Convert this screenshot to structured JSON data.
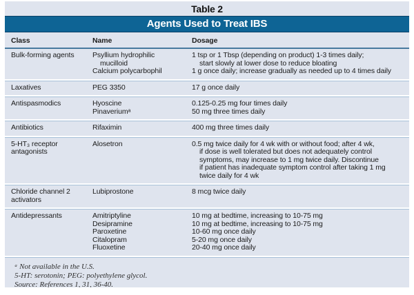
{
  "table": {
    "caption": "Table 2",
    "title": "Agents Used to Treat IBS",
    "columns": [
      "Class",
      "Name",
      "Dosage"
    ],
    "rows": [
      {
        "class_lines": [
          {
            "t": "Bulk-forming agents"
          }
        ],
        "name_lines": [
          {
            "t": "Psyllium hydrophilic"
          },
          {
            "t": "mucilloid",
            "indent": true
          },
          {
            "t": "Calcium polycarbophil"
          }
        ],
        "dosage_lines": [
          {
            "t": "1 tsp or 1 Tbsp (depending on product) 1-3 times daily;"
          },
          {
            "t": "start slowly at lower dose to reduce bloating",
            "indent": true
          },
          {
            "t": "1 g once daily; increase gradually as needed up to 4 times daily"
          }
        ]
      },
      {
        "class_lines": [
          {
            "t": "Laxatives"
          }
        ],
        "name_lines": [
          {
            "t": "PEG 3350"
          }
        ],
        "dosage_lines": [
          {
            "t": "17 g once daily"
          }
        ]
      },
      {
        "class_lines": [
          {
            "t": "Antispasmodics"
          }
        ],
        "name_lines": [
          {
            "t": "Hyoscine"
          },
          {
            "t": "Pinaveriumᵃ"
          }
        ],
        "dosage_lines": [
          {
            "t": "0.125-0.25 mg four times daily"
          },
          {
            "t": "50 mg three times daily"
          }
        ]
      },
      {
        "class_lines": [
          {
            "t": "Antibiotics"
          }
        ],
        "name_lines": [
          {
            "t": "Rifaximin"
          }
        ],
        "dosage_lines": [
          {
            "t": "400 mg three times daily"
          }
        ]
      },
      {
        "class_lines": [
          {
            "t": "5-HT₃ receptor"
          },
          {
            "t": "antagonists"
          }
        ],
        "name_lines": [
          {
            "t": "Alosetron"
          }
        ],
        "dosage_lines": [
          {
            "t": "0.5 mg twice daily for 4 wk with or without food; after 4 wk,"
          },
          {
            "t": "if dose is well tolerated but does not adequately control",
            "indent": true
          },
          {
            "t": "symptoms, may increase to 1 mg twice daily. Discontinue",
            "indent": true
          },
          {
            "t": "if patient has inadequate symptom control after taking 1 mg",
            "indent": true
          },
          {
            "t": "twice daily for 4 wk",
            "indent": true
          }
        ]
      },
      {
        "class_lines": [
          {
            "t": "Chloride channel 2"
          },
          {
            "t": "activators"
          }
        ],
        "name_lines": [
          {
            "t": "Lubiprostone"
          }
        ],
        "dosage_lines": [
          {
            "t": "8 mcg twice daily"
          }
        ]
      },
      {
        "class_lines": [
          {
            "t": "Antidepressants"
          }
        ],
        "name_lines": [
          {
            "t": "Amitriptyline"
          },
          {
            "t": "Desipramine"
          },
          {
            "t": "Paroxetine"
          },
          {
            "t": "Citalopram"
          },
          {
            "t": "Fluoxetine"
          }
        ],
        "dosage_lines": [
          {
            "t": "10 mg at bedtime, increasing to 10-75 mg"
          },
          {
            "t": "10 mg at bedtime, increasing to 10-75 mg"
          },
          {
            "t": "10-60 mg once daily"
          },
          {
            "t": "5-20 mg once daily"
          },
          {
            "t": "20-40 mg once daily"
          }
        ]
      }
    ],
    "footnotes": [
      "ᵃ Not available in the U.S.",
      "5-HT: serotonin; PEG: polyethylene glycol.",
      "Source: References 1, 31, 36-40."
    ]
  },
  "colors": {
    "panel_background": "#dfe4ee",
    "title_bar_background": "#0e6495",
    "title_bar_border": "#0a4066",
    "title_text": "#ffffff",
    "header_underline": "#47799e",
    "row_divider_white": "#ffffff",
    "row_divider_blue": "#a6c0d8",
    "body_text": "#1b1b1b"
  }
}
